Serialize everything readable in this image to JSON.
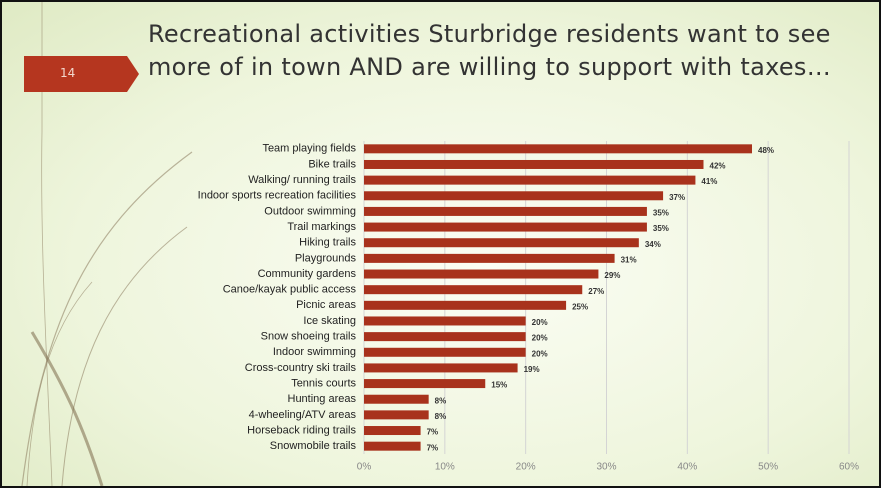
{
  "slide_number": "14",
  "chart_data": {
    "type": "hbar",
    "title": "Recreational activities Sturbridge residents want to see more of in town AND are willing to support with taxes…",
    "categories": [
      "Team playing fields",
      "Bike trails",
      "Walking/ running trails",
      "Indoor sports recreation facilities",
      "Outdoor swimming",
      "Trail markings",
      "Hiking trails",
      "Playgrounds",
      "Community gardens",
      "Canoe/kayak public access",
      "Picnic areas",
      "Ice skating",
      "Snow shoeing trails",
      "Indoor swimming",
      "Cross-country ski trails",
      "Tennis courts",
      "Hunting areas",
      "4-wheeling/ATV areas",
      "Horseback riding trails",
      "Snowmobile trails"
    ],
    "values": [
      48,
      42,
      41,
      37,
      35,
      35,
      34,
      31,
      29,
      27,
      25,
      20,
      20,
      20,
      19,
      15,
      8,
      8,
      7,
      7
    ],
    "value_labels": [
      "48%",
      "42%",
      "41%",
      "37%",
      "35%",
      "35%",
      "34%",
      "31%",
      "29%",
      "27%",
      "25%",
      "20%",
      "20%",
      "20%",
      "19%",
      "15%",
      "8%",
      "8%",
      "7%",
      "7%"
    ],
    "color": "#a8321c",
    "xlim": [
      0,
      60
    ],
    "xticks": [
      {
        "value": 0,
        "label": "0%"
      },
      {
        "value": 10,
        "label": "10%"
      },
      {
        "value": 20,
        "label": "20%"
      },
      {
        "value": 30,
        "label": "30%"
      },
      {
        "value": 40,
        "label": "40%"
      },
      {
        "value": 50,
        "label": "50%"
      },
      {
        "value": 60,
        "label": "60%"
      }
    ],
    "grid": true
  }
}
